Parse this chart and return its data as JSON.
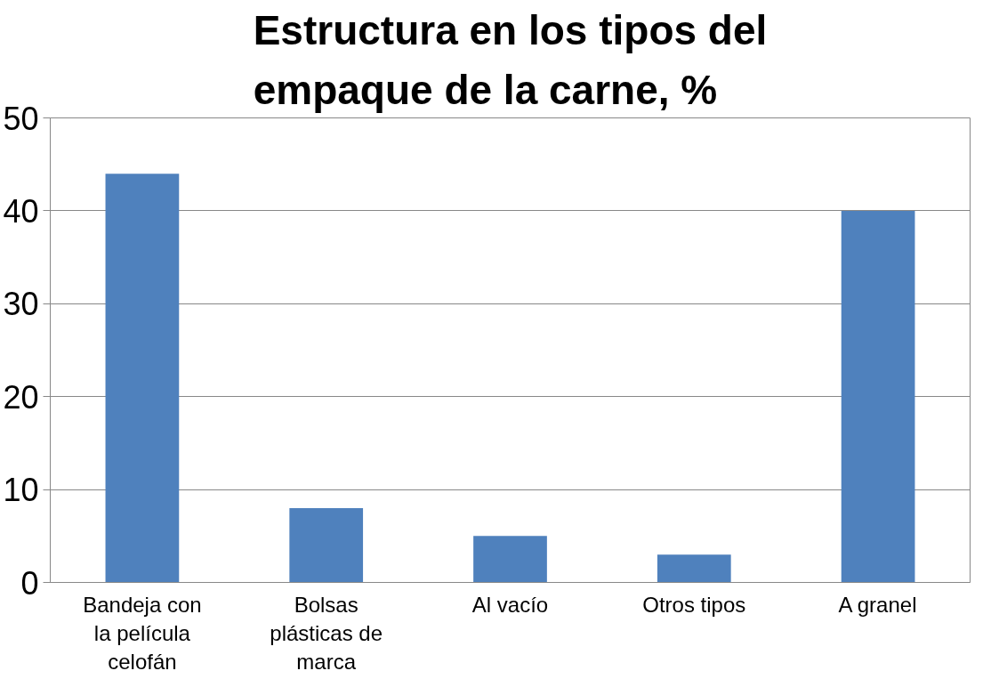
{
  "chart_data": {
    "type": "bar",
    "title": "Estructura en los tipos del empaque de la carne, %",
    "categories": [
      "Bandeja con la película celofán",
      "Bolsas plásticas de marca",
      "Al vacío",
      "Otros tipos",
      "A granel"
    ],
    "values": [
      44,
      8,
      5,
      3,
      40
    ],
    "color": "#4f81bd",
    "ylim": [
      0,
      50
    ],
    "yticks": [
      0,
      10,
      20,
      30,
      40,
      50
    ],
    "grid": "y"
  }
}
